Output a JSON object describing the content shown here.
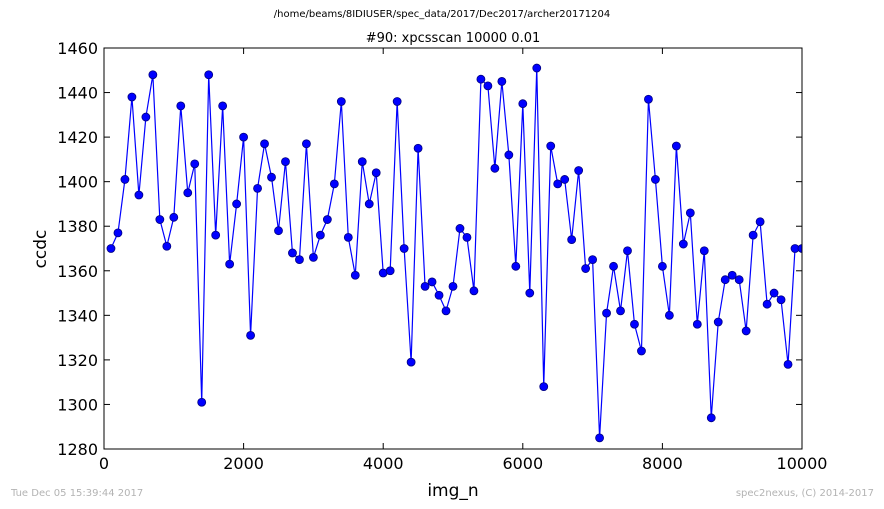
{
  "suptitle": "/home/beams/8IDIUSER/spec_data/2017/Dec2017/archer20171204",
  "footer": {
    "timestamp": "Tue Dec 05 15:39:44 2017",
    "credit": "spec2nexus, (C) 2014-2017"
  },
  "colors": {
    "line": "#0000ff",
    "marker_fill": "#0000ff",
    "marker_edge": "#000080"
  },
  "chart_data": {
    "type": "line",
    "title": "#90: xpcsscan 10000 0.01",
    "xlabel": "img_n",
    "ylabel": "ccdc",
    "xlim": [
      0,
      10000
    ],
    "ylim": [
      1280,
      1460
    ],
    "xticks": [
      0,
      2000,
      4000,
      6000,
      8000,
      10000
    ],
    "yticks": [
      1280,
      1300,
      1320,
      1340,
      1360,
      1380,
      1400,
      1420,
      1440,
      1460
    ],
    "grid": false,
    "legend": "none",
    "series": [
      {
        "x": [
          100,
          200,
          300,
          400,
          500,
          600,
          700,
          800,
          900,
          1000,
          1100,
          1200,
          1300,
          1400,
          1500,
          1600,
          1700,
          1800,
          1900,
          2000,
          2100,
          2200,
          2300,
          2400,
          2500,
          2600,
          2700,
          2800,
          2900,
          3000,
          3100,
          3200,
          3300,
          3400,
          3500,
          3600,
          3700,
          3800,
          3900,
          4000,
          4100,
          4200,
          4300,
          4400,
          4500,
          4600,
          4700,
          4800,
          4900,
          5000,
          5100,
          5200,
          5300,
          5400,
          5500,
          5600,
          5700,
          5800,
          5900,
          6000,
          6100,
          6200,
          6300,
          6400,
          6500,
          6600,
          6700,
          6800,
          6900,
          7000,
          7100,
          7200,
          7300,
          7400,
          7500,
          7600,
          7700,
          7800,
          7900,
          8000,
          8100,
          8200,
          8300,
          8400,
          8500,
          8600,
          8700,
          8800,
          8900,
          9000,
          9100,
          9200,
          9300,
          9400,
          9500,
          9600,
          9700,
          9800,
          9900,
          10000
        ],
        "y": [
          1370,
          1377,
          1401,
          1438,
          1394,
          1429,
          1448,
          1383,
          1371,
          1384,
          1434,
          1395,
          1408,
          1301,
          1448,
          1376,
          1434,
          1363,
          1390,
          1420,
          1331,
          1397,
          1417,
          1402,
          1378,
          1409,
          1368,
          1365,
          1417,
          1366,
          1376,
          1383,
          1399,
          1436,
          1375,
          1358,
          1409,
          1390,
          1404,
          1359,
          1360,
          1436,
          1370,
          1319,
          1415,
          1353,
          1355,
          1349,
          1342,
          1353,
          1379,
          1375,
          1351,
          1446,
          1443,
          1406,
          1445,
          1412,
          1362,
          1435,
          1350,
          1451,
          1308,
          1416,
          1399,
          1401,
          1374,
          1405,
          1361,
          1365,
          1285,
          1341,
          1362,
          1342,
          1369,
          1336,
          1324,
          1437,
          1401,
          1362,
          1340,
          1416,
          1372,
          1386,
          1336,
          1369,
          1294,
          1337,
          1356,
          1358,
          1356,
          1333,
          1376,
          1382,
          1345,
          1350,
          1347,
          1318,
          1370,
          1370
        ]
      }
    ]
  }
}
